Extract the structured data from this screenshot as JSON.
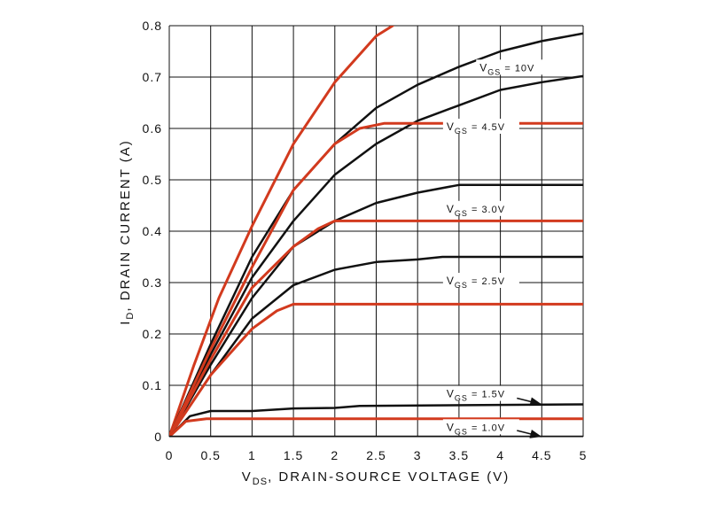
{
  "chart_data": {
    "type": "line",
    "xlabel": {
      "main": "V",
      "sub": "DS",
      "rest": ", DRAIN-SOURCE VOLTAGE (V)"
    },
    "ylabel": {
      "main": "I",
      "sub": "D",
      "rest": ", DRAIN CURRENT (A)"
    },
    "xlim": [
      0,
      5
    ],
    "ylim": [
      0,
      0.8
    ],
    "grid": true,
    "xticks": [
      "0",
      "0.5",
      "1",
      "1.5",
      "2",
      "2.5",
      "3",
      "3.5",
      "4",
      "4.5",
      "5"
    ],
    "xtick_values": [
      0,
      0.5,
      1,
      1.5,
      2,
      2.5,
      3,
      3.5,
      4,
      4.5,
      5
    ],
    "yticks": [
      "0",
      "0.1",
      "0.2",
      "0.3",
      "0.4",
      "0.5",
      "0.6",
      "0.7",
      "0.8"
    ],
    "ytick_values": [
      0,
      0.1,
      0.2,
      0.3,
      0.4,
      0.5,
      0.6,
      0.7,
      0.8
    ],
    "colors": {
      "black": "#111111",
      "red": "#d23a1e"
    },
    "series": [
      {
        "color": "red",
        "points": [
          [
            0,
            0
          ],
          [
            0.3,
            0.14
          ],
          [
            0.6,
            0.27
          ],
          [
            1,
            0.41
          ],
          [
            1.5,
            0.57
          ],
          [
            2,
            0.69
          ],
          [
            2.5,
            0.78
          ],
          [
            2.7,
            0.8
          ]
        ]
      },
      {
        "color": "black",
        "points": [
          [
            0,
            0
          ],
          [
            0.5,
            0.18
          ],
          [
            1,
            0.35
          ],
          [
            1.5,
            0.48
          ],
          [
            2,
            0.57
          ],
          [
            2.5,
            0.64
          ],
          [
            3,
            0.685
          ],
          [
            3.5,
            0.72
          ],
          [
            4,
            0.75
          ],
          [
            4.5,
            0.77
          ],
          [
            5,
            0.785
          ]
        ]
      },
      {
        "color": "black",
        "points": [
          [
            0,
            0
          ],
          [
            0.5,
            0.16
          ],
          [
            1,
            0.31
          ],
          [
            1.5,
            0.42
          ],
          [
            2,
            0.51
          ],
          [
            2.5,
            0.57
          ],
          [
            3,
            0.615
          ],
          [
            3.5,
            0.645
          ],
          [
            4,
            0.675
          ],
          [
            4.5,
            0.69
          ],
          [
            5,
            0.702
          ]
        ]
      },
      {
        "color": "red",
        "points": [
          [
            0,
            0
          ],
          [
            0.5,
            0.17
          ],
          [
            1,
            0.33
          ],
          [
            1.5,
            0.48
          ],
          [
            2,
            0.57
          ],
          [
            2.3,
            0.6
          ],
          [
            2.6,
            0.61
          ],
          [
            5,
            0.61
          ]
        ]
      },
      {
        "color": "black",
        "points": [
          [
            0,
            0
          ],
          [
            0.5,
            0.14
          ],
          [
            1,
            0.27
          ],
          [
            1.5,
            0.37
          ],
          [
            2,
            0.42
          ],
          [
            2.5,
            0.455
          ],
          [
            3,
            0.475
          ],
          [
            3.5,
            0.49
          ],
          [
            5,
            0.49
          ]
        ]
      },
      {
        "color": "red",
        "points": [
          [
            0,
            0
          ],
          [
            0.5,
            0.15
          ],
          [
            1,
            0.29
          ],
          [
            1.5,
            0.37
          ],
          [
            1.8,
            0.405
          ],
          [
            2,
            0.42
          ],
          [
            5,
            0.42
          ]
        ]
      },
      {
        "color": "black",
        "points": [
          [
            0,
            0
          ],
          [
            0.5,
            0.12
          ],
          [
            1,
            0.23
          ],
          [
            1.5,
            0.295
          ],
          [
            2,
            0.325
          ],
          [
            2.5,
            0.34
          ],
          [
            3,
            0.345
          ],
          [
            3.3,
            0.35
          ],
          [
            5,
            0.35
          ]
        ]
      },
      {
        "color": "red",
        "points": [
          [
            0,
            0
          ],
          [
            0.5,
            0.12
          ],
          [
            1,
            0.21
          ],
          [
            1.3,
            0.245
          ],
          [
            1.5,
            0.258
          ],
          [
            5,
            0.258
          ]
        ]
      },
      {
        "color": "black",
        "points": [
          [
            0,
            0
          ],
          [
            0.25,
            0.04
          ],
          [
            0.5,
            0.05
          ],
          [
            1,
            0.05
          ],
          [
            1.5,
            0.055
          ],
          [
            2,
            0.056
          ],
          [
            2.3,
            0.06
          ],
          [
            5,
            0.063
          ]
        ]
      },
      {
        "color": "red",
        "points": [
          [
            0,
            0
          ],
          [
            0.2,
            0.03
          ],
          [
            0.45,
            0.035
          ],
          [
            5,
            0.035
          ]
        ]
      },
      {
        "color": "black",
        "points": [
          [
            0,
            0
          ],
          [
            5,
            0
          ]
        ]
      }
    ],
    "annotations": [
      {
        "main": "V",
        "sub": "GS",
        "rest": " = 10V",
        "x": 3.75,
        "y": 0.715
      },
      {
        "main": "V",
        "sub": "GS",
        "rest": " = 4.5V",
        "x": 3.35,
        "y": 0.6
      },
      {
        "main": "V",
        "sub": "GS",
        "rest": " = 3.0V",
        "x": 3.35,
        "y": 0.44
      },
      {
        "main": "V",
        "sub": "GS",
        "rest": " = 2.5V",
        "x": 3.35,
        "y": 0.3
      },
      {
        "main": "V",
        "sub": "GS",
        "rest": " = 1.5V",
        "x": 3.35,
        "y": 0.08
      },
      {
        "main": "V",
        "sub": "GS",
        "rest": " = 1.0V",
        "x": 3.35,
        "y": 0.015
      }
    ],
    "arrows": [
      {
        "from": [
          4.2,
          0.075
        ],
        "to": [
          4.5,
          0.063
        ]
      },
      {
        "from": [
          4.2,
          0.012
        ],
        "to": [
          4.5,
          0.0
        ]
      }
    ]
  }
}
